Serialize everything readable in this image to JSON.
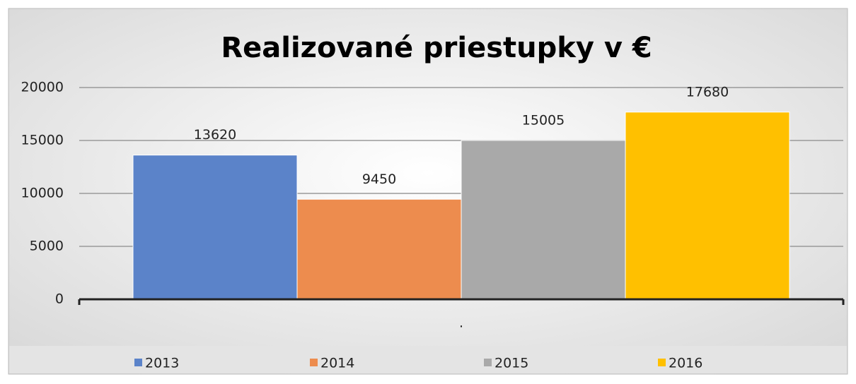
{
  "chart_data": {
    "type": "bar",
    "title": "Realizované priestupky v €",
    "categories": [
      "."
    ],
    "series": [
      {
        "name": "2013",
        "color": "#5b83c9",
        "values": [
          13620
        ]
      },
      {
        "name": "2014",
        "color": "#ed8c4e",
        "values": [
          9450
        ]
      },
      {
        "name": "2015",
        "color": "#a9a9a9",
        "values": [
          15005
        ]
      },
      {
        "name": "2016",
        "color": "#ffc000",
        "values": [
          17680
        ]
      }
    ],
    "ylim": [
      0,
      20000
    ],
    "yticks": [
      0,
      5000,
      10000,
      15000,
      20000
    ],
    "grid": true,
    "legend": "bottom"
  }
}
